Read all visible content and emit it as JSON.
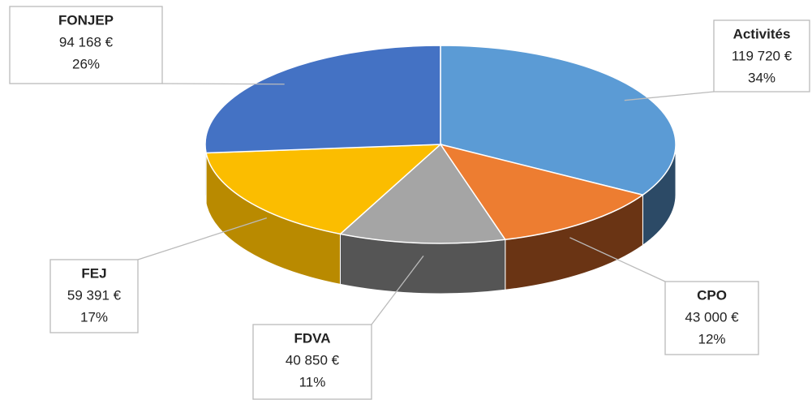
{
  "chart_data": {
    "type": "pie",
    "categories": [
      "Activités",
      "CPO",
      "FDVA",
      "FEJ",
      "FONJEP"
    ],
    "values": [
      119720,
      43000,
      40850,
      59391,
      94168
    ],
    "value_labels": [
      "119 720 €",
      "43 000 €",
      "40 850 €",
      "59 391 €",
      "94 168 €"
    ],
    "percent_labels": [
      "34%",
      "12%",
      "11%",
      "17%",
      "26%"
    ],
    "colors": [
      "#5b9bd5",
      "#ed7d31",
      "#a5a5a5",
      "#fbbd00",
      "#4472c4"
    ],
    "side_colors": [
      "#2c4a66",
      "#6a3414",
      "#555555",
      "#b98a00",
      "#2f528f"
    ]
  }
}
